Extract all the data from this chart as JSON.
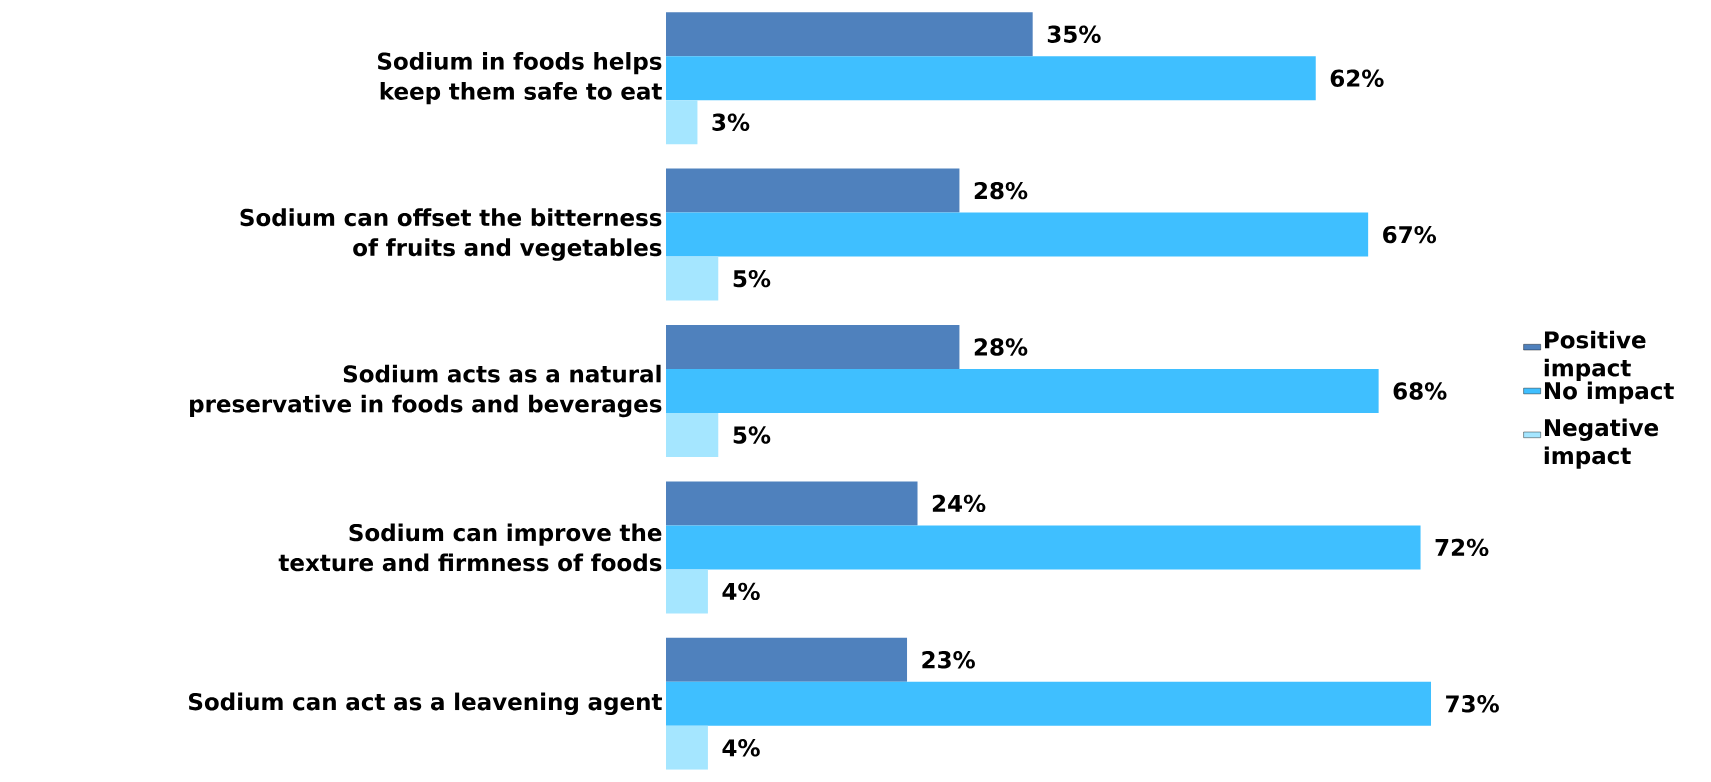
{
  "chart_data": {
    "type": "bar",
    "orientation": "horizontal",
    "legend": "right",
    "categories": [
      "Sodium in foods helps keep them safe to eat",
      "Sodium can offset the bitterness of fruits and vegetables",
      "Sodium acts as a natural preservative in foods and beverages",
      "Sodium can improve the texture and firmness of foods",
      "Sodium can act as a leavening agent"
    ],
    "series": [
      {
        "name": "Positive impact",
        "color": "#4f81bd",
        "values": [
          35,
          28,
          28,
          24,
          23
        ],
        "value_labels": [
          "35%",
          "28%",
          "28%",
          "24%",
          "23%"
        ]
      },
      {
        "name": "No impact",
        "color": "#3fbfff",
        "values": [
          62,
          67,
          68,
          72,
          73
        ],
        "value_labels": [
          "62%",
          "67%",
          "68%",
          "72%",
          "73%"
        ]
      },
      {
        "name": "Negative impact",
        "color": "#a5e6ff",
        "values": [
          3,
          5,
          5,
          4,
          4
        ],
        "value_labels": [
          "3%",
          "5%",
          "5%",
          "4%",
          "4%"
        ]
      }
    ]
  }
}
